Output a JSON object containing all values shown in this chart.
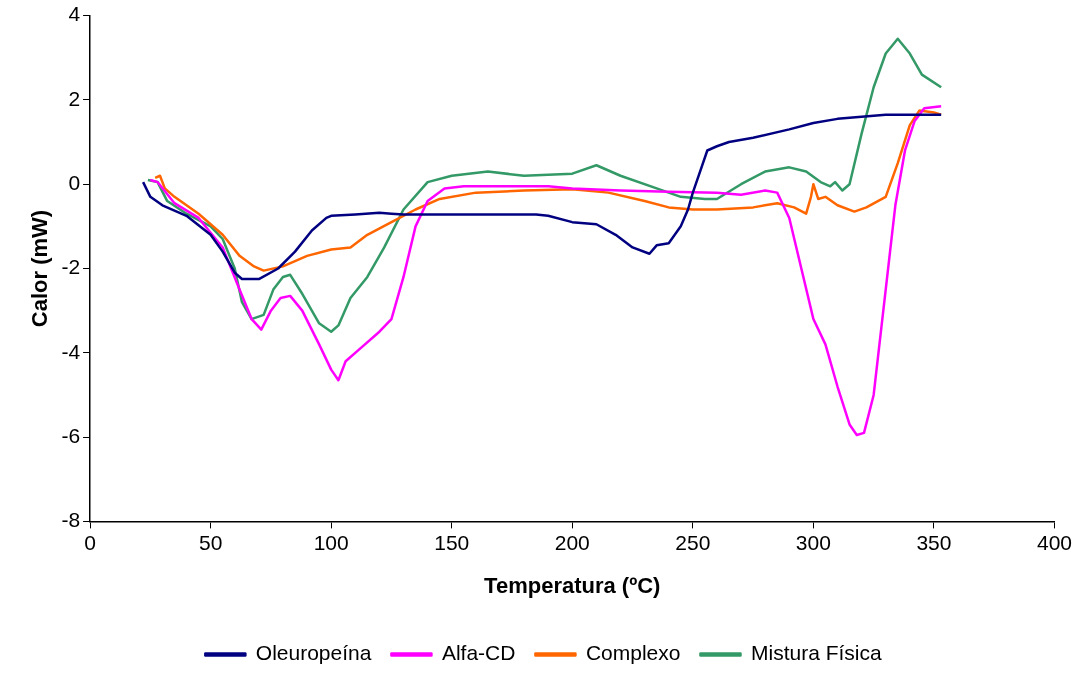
{
  "chart_data": {
    "type": "line",
    "xlabel": "Temperatura (ºC)",
    "ylabel": "Calor (mW)",
    "xlim": [
      0,
      400
    ],
    "xticks": [
      0,
      50,
      100,
      150,
      200,
      250,
      300,
      350,
      400
    ],
    "ylim": [
      -8,
      4
    ],
    "yticks": [
      -8,
      -6,
      -4,
      -2,
      0,
      2,
      4
    ],
    "grid": false,
    "legend": "bottom",
    "marker": "none",
    "line_style": "solid",
    "series": [
      {
        "name": "Oleuropeína",
        "color": "#000080",
        "x": [
          22,
          25,
          30,
          40,
          50,
          55,
          60,
          63,
          70,
          78,
          85,
          92,
          98,
          100,
          110,
          120,
          125,
          130,
          150,
          185,
          190,
          200,
          210,
          218,
          225,
          232,
          235,
          240,
          245,
          248,
          250,
          253,
          256,
          260,
          265,
          275,
          290,
          300,
          310,
          320,
          330,
          353
        ],
        "values": [
          0.05,
          -0.3,
          -0.5,
          -0.75,
          -1.2,
          -1.6,
          -2.1,
          -2.25,
          -2.25,
          -2.0,
          -1.6,
          -1.1,
          -0.8,
          -0.75,
          -0.72,
          -0.68,
          -0.7,
          -0.72,
          -0.72,
          -0.72,
          -0.75,
          -0.9,
          -0.95,
          -1.2,
          -1.5,
          -1.65,
          -1.45,
          -1.4,
          -1.0,
          -0.6,
          -0.2,
          0.3,
          0.8,
          0.9,
          1.0,
          1.1,
          1.3,
          1.45,
          1.55,
          1.6,
          1.65,
          1.65
        ]
      },
      {
        "name": "Alfa-CD",
        "color": "#ff00ff",
        "x": [
          25,
          28,
          35,
          45,
          55,
          62,
          67,
          71,
          75,
          79,
          83,
          88,
          95,
          100,
          103,
          106,
          112,
          120,
          125,
          130,
          135,
          140,
          147,
          155,
          190,
          200,
          220,
          240,
          260,
          270,
          280,
          285,
          290,
          295,
          300,
          305,
          310,
          315,
          318,
          321,
          325,
          330,
          334,
          338,
          342,
          346,
          353
        ],
        "values": [
          0.1,
          0.05,
          -0.45,
          -0.8,
          -1.5,
          -2.5,
          -3.2,
          -3.45,
          -3.0,
          -2.7,
          -2.65,
          -3.0,
          -3.8,
          -4.4,
          -4.65,
          -4.2,
          -3.9,
          -3.5,
          -3.2,
          -2.2,
          -1.0,
          -0.4,
          -0.1,
          -0.05,
          -0.05,
          -0.1,
          -0.15,
          -0.18,
          -0.2,
          -0.25,
          -0.15,
          -0.2,
          -0.8,
          -2.0,
          -3.2,
          -3.8,
          -4.8,
          -5.7,
          -5.95,
          -5.9,
          -5.0,
          -2.5,
          -0.5,
          0.8,
          1.5,
          1.8,
          1.85
        ]
      },
      {
        "name": "Complexo",
        "color": "#ff6600",
        "x": [
          27,
          29,
          31,
          35,
          45,
          55,
          62,
          68,
          72,
          80,
          90,
          100,
          108,
          115,
          125,
          135,
          145,
          160,
          180,
          200,
          215,
          230,
          240,
          250,
          260,
          275,
          285,
          292,
          297,
          299,
          300,
          302,
          305,
          310,
          317,
          322,
          330,
          335,
          340,
          344,
          350,
          353
        ],
        "values": [
          0.15,
          0.2,
          -0.1,
          -0.3,
          -0.7,
          -1.2,
          -1.7,
          -1.95,
          -2.05,
          -1.95,
          -1.7,
          -1.55,
          -1.5,
          -1.2,
          -0.9,
          -0.6,
          -0.35,
          -0.2,
          -0.15,
          -0.12,
          -0.2,
          -0.4,
          -0.55,
          -0.6,
          -0.6,
          -0.55,
          -0.45,
          -0.55,
          -0.7,
          -0.3,
          0.0,
          -0.35,
          -0.3,
          -0.5,
          -0.65,
          -0.55,
          -0.3,
          0.5,
          1.4,
          1.75,
          1.7,
          1.65
        ]
      },
      {
        "name": "Mistura Física",
        "color": "#339966",
        "x": [
          24,
          28,
          32,
          40,
          50,
          55,
          60,
          63,
          67,
          72,
          76,
          80,
          83,
          88,
          95,
          100,
          103,
          108,
          115,
          122,
          130,
          140,
          150,
          165,
          180,
          200,
          210,
          220,
          235,
          245,
          255,
          260,
          270,
          280,
          290,
          297,
          303,
          307,
          309,
          312,
          315,
          320,
          325,
          330,
          335,
          340,
          345,
          353
        ],
        "values": [
          0.1,
          0.05,
          -0.4,
          -0.7,
          -1.0,
          -1.3,
          -2.0,
          -2.8,
          -3.2,
          -3.1,
          -2.5,
          -2.2,
          -2.15,
          -2.6,
          -3.3,
          -3.5,
          -3.35,
          -2.7,
          -2.2,
          -1.5,
          -0.6,
          0.05,
          0.2,
          0.3,
          0.2,
          0.25,
          0.45,
          0.2,
          -0.1,
          -0.3,
          -0.35,
          -0.35,
          0.0,
          0.3,
          0.4,
          0.3,
          0.05,
          -0.05,
          0.05,
          -0.15,
          0.0,
          1.2,
          2.3,
          3.1,
          3.45,
          3.1,
          2.6,
          2.3
        ]
      }
    ]
  }
}
